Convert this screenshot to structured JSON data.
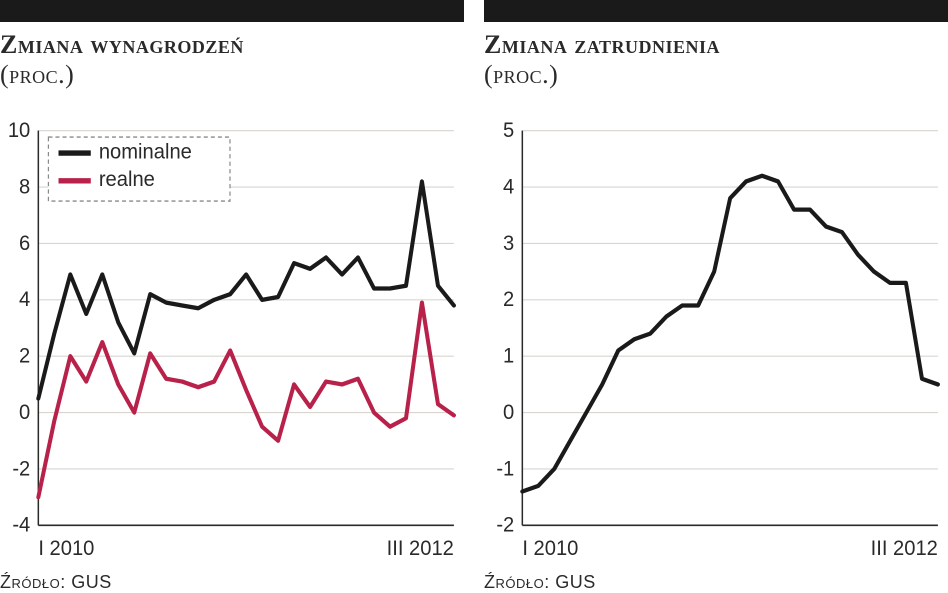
{
  "left": {
    "title_main": "Zmiana wynagrodzeń",
    "title_sub": "(proc.)",
    "source": "Źródło: GUS",
    "chart": {
      "type": "line",
      "ylim": [
        -4,
        10
      ],
      "ytick_step": 2,
      "yticks": [
        -4,
        -2,
        0,
        2,
        4,
        6,
        8,
        10
      ],
      "xlabels": {
        "start": "I 2010",
        "end": "III 2012"
      },
      "n_points": 27,
      "grid_color": "#d8d5cf",
      "axis_color": "#2a2a2a",
      "background_color": "#ffffff",
      "line_width": 4,
      "legend": {
        "border_style": "dashed",
        "border_color": "#8a8a8a",
        "items": [
          {
            "label": "nominalne",
            "color": "#1a1a1a"
          },
          {
            "label": "realne",
            "color": "#b8224a"
          }
        ]
      },
      "series": [
        {
          "name": "nominalne",
          "color": "#1a1a1a",
          "values": [
            0.5,
            2.8,
            4.9,
            3.5,
            4.9,
            3.2,
            2.1,
            4.2,
            3.9,
            3.8,
            3.7,
            4.0,
            4.2,
            4.9,
            4.0,
            4.1,
            5.3,
            5.1,
            5.5,
            4.9,
            5.5,
            4.4,
            4.4,
            4.5,
            8.2,
            4.5,
            3.8
          ]
        },
        {
          "name": "realne",
          "color": "#b8224a",
          "values": [
            -3.0,
            -0.3,
            2.0,
            1.1,
            2.5,
            1.0,
            0.0,
            2.1,
            1.2,
            1.1,
            0.9,
            1.1,
            2.2,
            0.8,
            -0.5,
            -1.0,
            1.0,
            0.2,
            1.1,
            1.0,
            1.2,
            0.0,
            -0.5,
            -0.2,
            3.9,
            0.3,
            -0.1
          ]
        }
      ]
    }
  },
  "right": {
    "title_main": "Zmiana zatrudnienia",
    "title_sub": "(proc.)",
    "source": "Źródło: GUS",
    "chart": {
      "type": "line",
      "ylim": [
        -2,
        5
      ],
      "ytick_step": 1,
      "yticks": [
        -2,
        -1,
        0,
        1,
        2,
        3,
        4,
        5
      ],
      "xlabels": {
        "start": "I 2010",
        "end": "III 2012"
      },
      "n_points": 27,
      "grid_color": "#d8d5cf",
      "axis_color": "#2a2a2a",
      "background_color": "#ffffff",
      "line_width": 4,
      "series": [
        {
          "name": "zatrudnienie",
          "color": "#1a1a1a",
          "values": [
            -1.4,
            -1.3,
            -1.0,
            -0.5,
            0.0,
            0.5,
            1.1,
            1.3,
            1.4,
            1.7,
            1.9,
            1.9,
            2.5,
            3.8,
            4.1,
            4.2,
            4.1,
            3.6,
            3.6,
            3.3,
            3.2,
            2.8,
            2.5,
            2.3,
            2.3,
            0.6,
            0.5
          ]
        }
      ]
    }
  }
}
